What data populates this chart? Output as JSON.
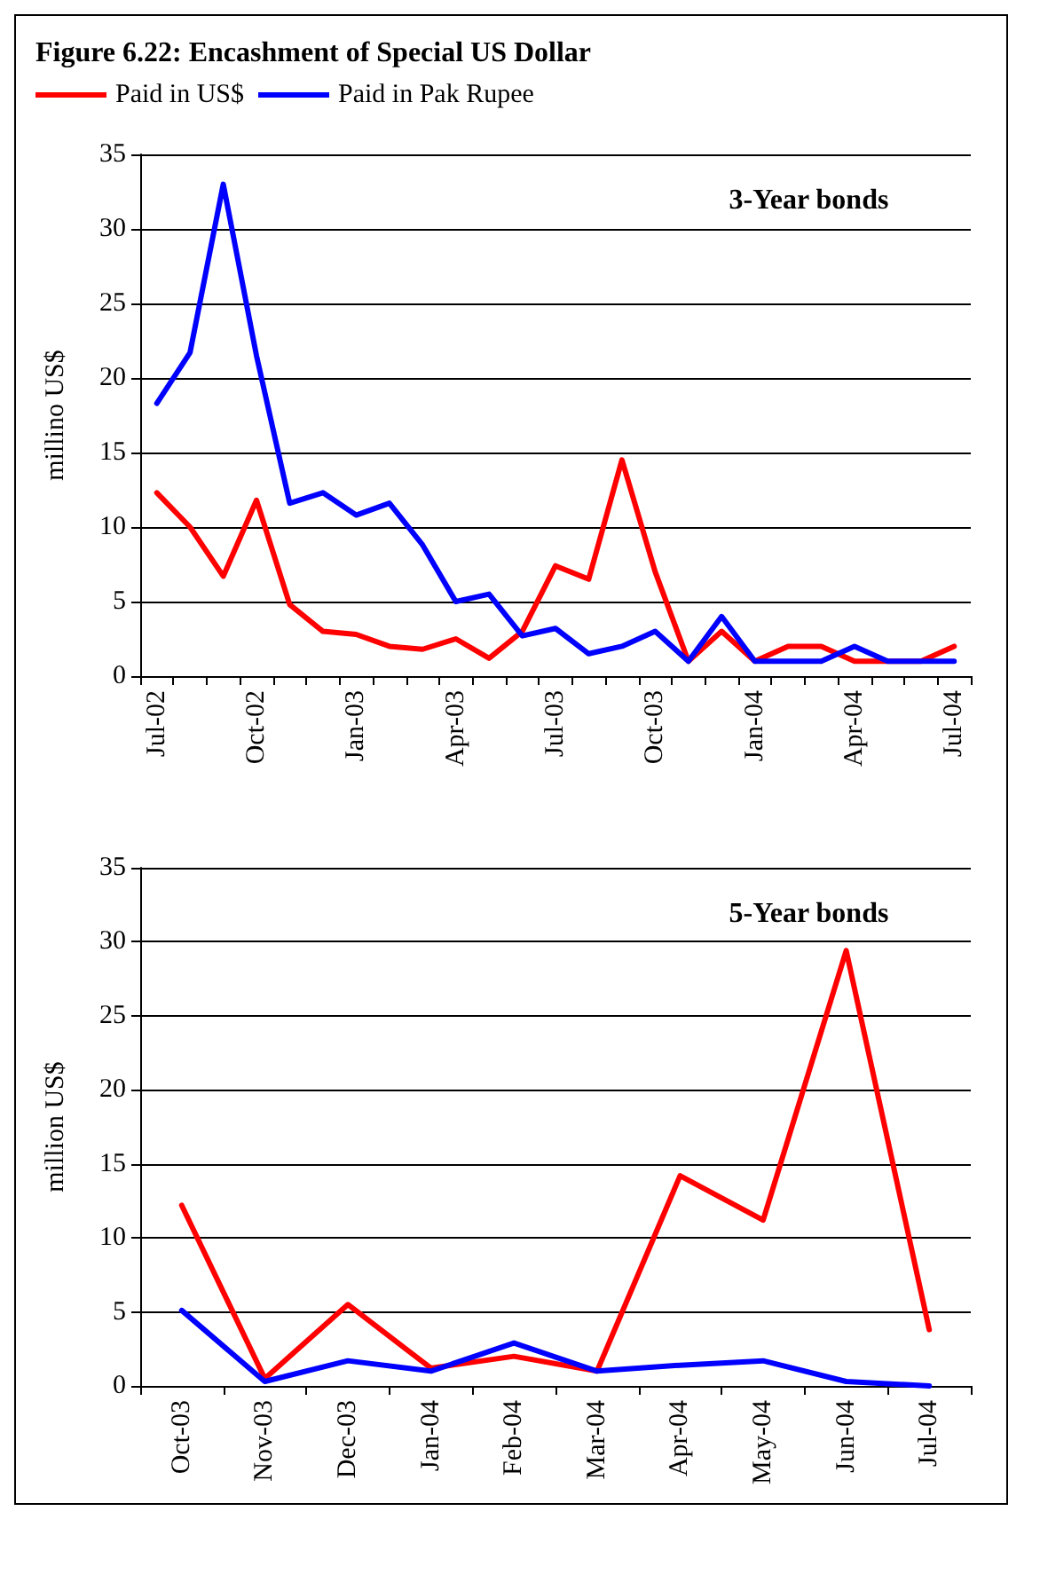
{
  "chart_data": [
    {
      "type": "line",
      "title": "Figure 6.22: Encashment of Special US Dollar",
      "ylabel": "millino US$",
      "annotations": [
        "3-Year bonds"
      ],
      "legend": "top left",
      "grid": "y",
      "marker": "none",
      "line_style": "solid",
      "categories": [
        "Jul-02",
        null,
        null,
        "Oct-02",
        null,
        null,
        "Jan-03",
        null,
        null,
        "Apr-03",
        null,
        null,
        "Jul-03",
        null,
        null,
        "Oct-03",
        null,
        null,
        "Jan-04",
        null,
        null,
        "Apr-04",
        null,
        null,
        "Jul-04"
      ],
      "ylim": [
        0,
        35
      ],
      "yticks": [
        0,
        5,
        10,
        15,
        20,
        25,
        30,
        35
      ],
      "series": [
        {
          "name": "Paid in US$",
          "color": "#ff0000",
          "values": [
            12.3,
            10,
            6.7,
            11.8,
            4.8,
            3,
            2.8,
            2,
            1.8,
            2.5,
            1.2,
            3,
            7.4,
            6.5,
            14.5,
            7,
            1,
            3,
            1,
            2,
            2,
            1,
            1,
            1,
            2
          ]
        },
        {
          "name": "Paid in Pak Rupee",
          "color": "#0000ff",
          "values": [
            18.3,
            21.7,
            33,
            21.5,
            11.6,
            12.3,
            10.8,
            11.6,
            8.8,
            5,
            5.5,
            2.7,
            3.2,
            1.5,
            2,
            3,
            1,
            4,
            1,
            1,
            1,
            2,
            1,
            1,
            1
          ]
        }
      ]
    },
    {
      "type": "line",
      "ylabel": "million US$",
      "annotations": [
        "5-Year bonds"
      ],
      "legend": false,
      "grid": "y",
      "marker": "none",
      "line_style": "solid",
      "categories": [
        "Oct-03",
        "Nov-03",
        "Dec-03",
        "Jan-04",
        "Feb-04",
        "Mar-04",
        "Apr-04",
        "May-04",
        "Jun-04",
        "Jul-04"
      ],
      "ylim": [
        0,
        35
      ],
      "yticks": [
        0,
        5,
        10,
        15,
        20,
        25,
        30,
        35
      ],
      "series": [
        {
          "color": "#ff0000",
          "values": [
            12.2,
            0.5,
            5.5,
            1.2,
            2,
            1,
            14.2,
            11.2,
            29.4,
            3.8
          ]
        },
        {
          "color": "#0000ff",
          "values": [
            5.1,
            0.3,
            1.7,
            1,
            2.9,
            1,
            1.4,
            1.7,
            0.3,
            0
          ]
        }
      ]
    }
  ]
}
